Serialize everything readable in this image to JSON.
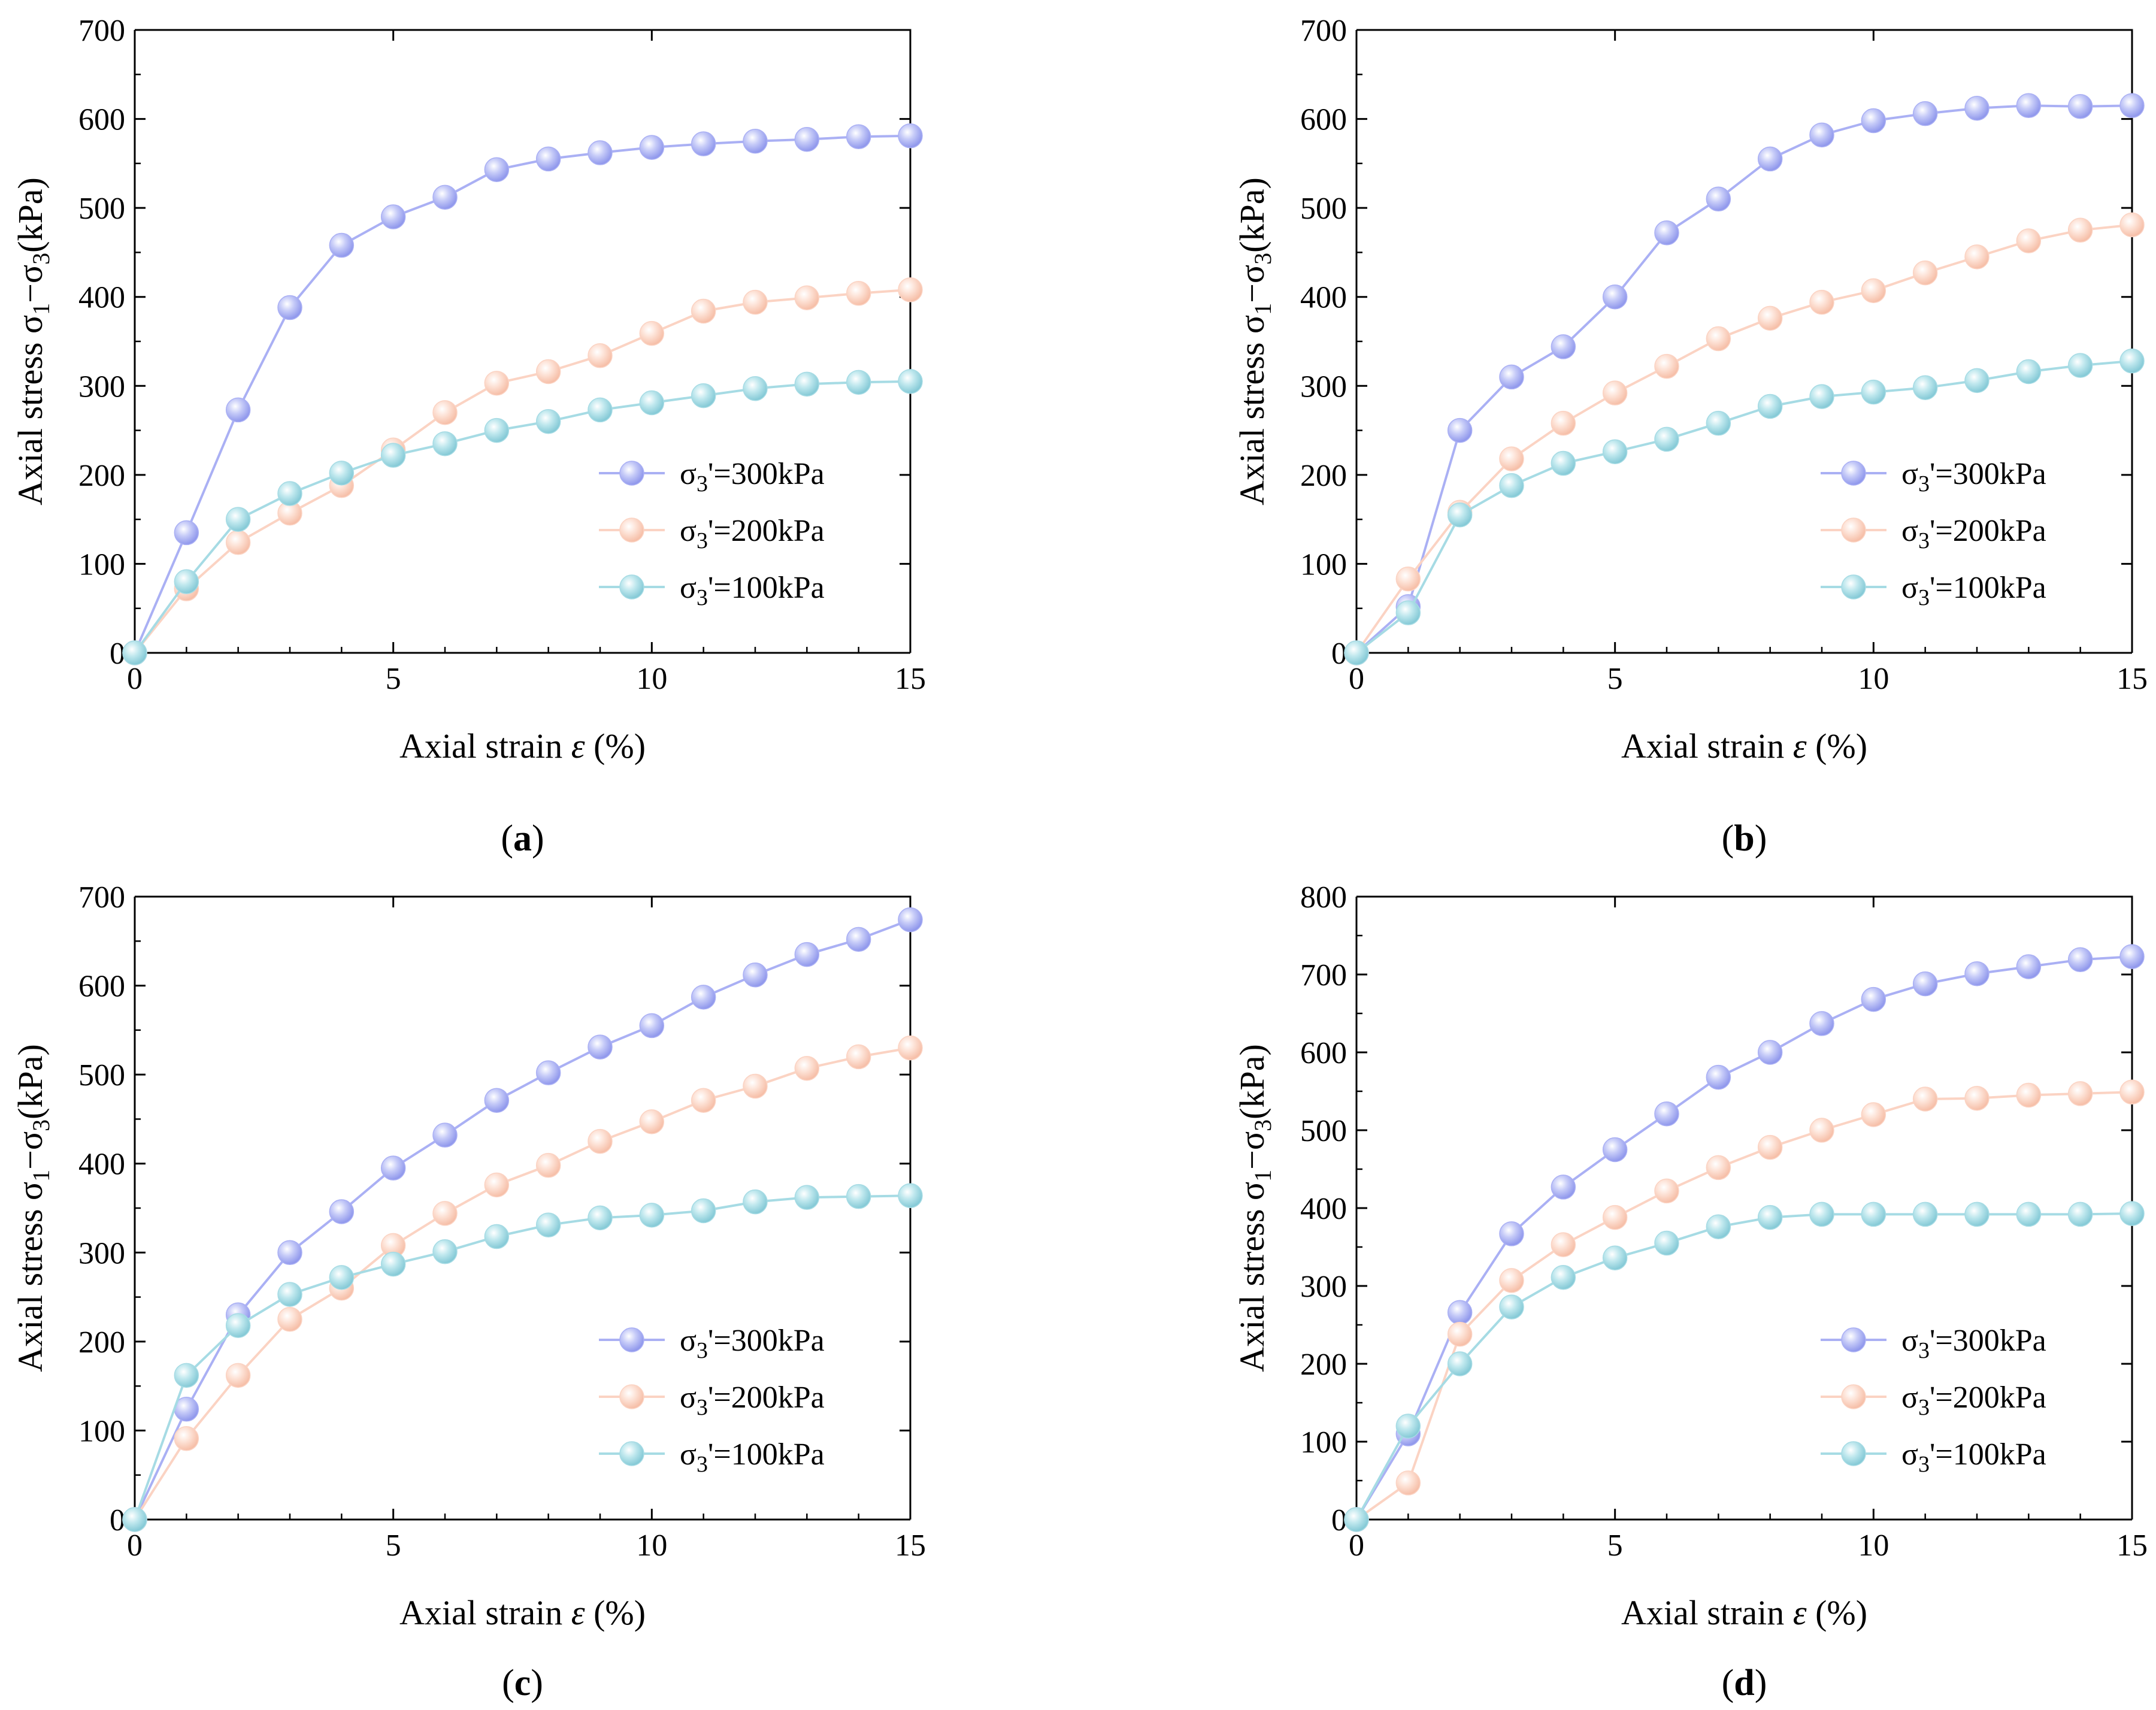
{
  "colors": {
    "s300": "#aab0f4",
    "s200": "#fbd3c3",
    "s100": "#a6dbe4",
    "axis": "#000000"
  },
  "chart_data": [
    {
      "type": "line",
      "panel_label": "a",
      "xlabel": "Axial strain",
      "xlabel_symbol": "ε",
      "xlabel_unit": "(%)",
      "ylabel_prefix": "Axial stress σ",
      "ylabel_sub1": "1",
      "ylabel_minus": "−σ",
      "ylabel_sub3": "3",
      "ylabel_unit": "(kPa)",
      "xlim": [
        0,
        15
      ],
      "ylim": [
        0,
        700
      ],
      "xticks": [
        "0",
        "5",
        "10",
        "15"
      ],
      "yticks": [
        "0",
        "100",
        "200",
        "300",
        "400",
        "500",
        "600",
        "700"
      ],
      "legend_position": "lower-right",
      "series": [
        {
          "key": "s300",
          "name_prefix": "σ",
          "name_sub": "3",
          "name_suffix": "'=300kPa",
          "x": [
            0,
            1,
            2,
            3,
            4,
            5,
            6,
            7,
            8,
            9,
            10,
            11,
            12,
            13,
            14,
            15
          ],
          "y": [
            0,
            135,
            273,
            388,
            458,
            490,
            512,
            543,
            555,
            562,
            568,
            572,
            575,
            577,
            580,
            581
          ]
        },
        {
          "key": "s200",
          "name_prefix": "σ",
          "name_sub": "3",
          "name_suffix": "'=200kPa",
          "x": [
            0,
            1,
            2,
            3,
            4,
            5,
            6,
            7,
            8,
            9,
            10,
            11,
            12,
            13,
            14,
            15
          ],
          "y": [
            0,
            72,
            124,
            157,
            188,
            228,
            270,
            303,
            316,
            334,
            359,
            384,
            394,
            399,
            404,
            408
          ]
        },
        {
          "key": "s100",
          "name_prefix": "σ",
          "name_sub": "3",
          "name_suffix": "'=100kPa",
          "x": [
            0,
            1,
            2,
            3,
            4,
            5,
            6,
            7,
            8,
            9,
            10,
            11,
            12,
            13,
            14,
            15
          ],
          "y": [
            0,
            80,
            150,
            179,
            202,
            222,
            235,
            250,
            260,
            273,
            281,
            289,
            297,
            302,
            304,
            305
          ]
        }
      ]
    },
    {
      "type": "line",
      "panel_label": "b",
      "xlabel": "Axial strain",
      "xlabel_symbol": "ε",
      "xlabel_unit": "(%)",
      "ylabel_prefix": "Axial stress σ",
      "ylabel_sub1": "1",
      "ylabel_minus": "−σ",
      "ylabel_sub3": "3",
      "ylabel_unit": "(kPa)",
      "xlim": [
        0,
        15
      ],
      "ylim": [
        0,
        700
      ],
      "xticks": [
        "0",
        "5",
        "10",
        "15"
      ],
      "yticks": [
        "0",
        "100",
        "200",
        "300",
        "400",
        "500",
        "600",
        "700"
      ],
      "legend_position": "lower-right",
      "series": [
        {
          "key": "s300",
          "name_prefix": "σ",
          "name_sub": "3",
          "name_suffix": "'=300kPa",
          "x": [
            0,
            1,
            2,
            3,
            4,
            5,
            6,
            7,
            8,
            9,
            10,
            11,
            12,
            13,
            14,
            15
          ],
          "y": [
            0,
            52,
            250,
            310,
            344,
            400,
            472,
            510,
            555,
            582,
            598,
            606,
            612,
            615,
            614,
            615
          ]
        },
        {
          "key": "s200",
          "name_prefix": "σ",
          "name_sub": "3",
          "name_suffix": "'=200kPa",
          "x": [
            0,
            1,
            2,
            3,
            4,
            5,
            6,
            7,
            8,
            9,
            10,
            11,
            12,
            13,
            14,
            15
          ],
          "y": [
            0,
            83,
            158,
            218,
            258,
            292,
            322,
            353,
            376,
            394,
            407,
            427,
            445,
            463,
            475,
            481
          ]
        },
        {
          "key": "s100",
          "name_prefix": "σ",
          "name_sub": "3",
          "name_suffix": "'=100kPa",
          "x": [
            0,
            1,
            2,
            3,
            4,
            5,
            6,
            7,
            8,
            9,
            10,
            11,
            12,
            13,
            14,
            15
          ],
          "y": [
            0,
            45,
            155,
            188,
            213,
            226,
            240,
            258,
            277,
            288,
            293,
            298,
            306,
            316,
            323,
            328
          ]
        }
      ]
    },
    {
      "type": "line",
      "panel_label": "c",
      "xlabel": "Axial strain",
      "xlabel_symbol": "ε",
      "xlabel_unit": "(%)",
      "ylabel_prefix": "Axial stress σ",
      "ylabel_sub1": "1",
      "ylabel_minus": "−σ",
      "ylabel_sub3": "3",
      "ylabel_unit": "(kPa)",
      "xlim": [
        0,
        15
      ],
      "ylim": [
        0,
        700
      ],
      "xticks": [
        "0",
        "5",
        "10",
        "15"
      ],
      "yticks": [
        "0",
        "100",
        "200",
        "300",
        "400",
        "500",
        "600",
        "700"
      ],
      "legend_position": "lower-right",
      "series": [
        {
          "key": "s300",
          "name_prefix": "σ",
          "name_sub": "3",
          "name_suffix": "'=300kPa",
          "x": [
            0,
            1,
            2,
            3,
            4,
            5,
            6,
            7,
            8,
            9,
            10,
            11,
            12,
            13,
            14,
            15
          ],
          "y": [
            0,
            124,
            230,
            300,
            346,
            395,
            432,
            471,
            502,
            531,
            555,
            587,
            612,
            635,
            652,
            674
          ]
        },
        {
          "key": "s200",
          "name_prefix": "σ",
          "name_sub": "3",
          "name_suffix": "'=200kPa",
          "x": [
            0,
            1,
            2,
            3,
            4,
            5,
            6,
            7,
            8,
            9,
            10,
            11,
            12,
            13,
            14,
            15
          ],
          "y": [
            0,
            91,
            162,
            225,
            260,
            308,
            344,
            376,
            398,
            425,
            447,
            471,
            487,
            507,
            520,
            530
          ]
        },
        {
          "key": "s100",
          "name_prefix": "σ",
          "name_sub": "3",
          "name_suffix": "'=100kPa",
          "x": [
            0,
            1,
            2,
            3,
            4,
            5,
            6,
            7,
            8,
            9,
            10,
            11,
            12,
            13,
            14,
            15
          ],
          "y": [
            0,
            162,
            218,
            253,
            272,
            287,
            301,
            318,
            331,
            339,
            342,
            347,
            357,
            362,
            363,
            364
          ]
        }
      ]
    },
    {
      "type": "line",
      "panel_label": "d",
      "xlabel": "Axial strain",
      "xlabel_symbol": "ε",
      "xlabel_unit": "(%)",
      "ylabel_prefix": "Axial stress σ",
      "ylabel_sub1": "1",
      "ylabel_minus": "−σ",
      "ylabel_sub3": "3",
      "ylabel_unit": "(kPa)",
      "xlim": [
        0,
        15
      ],
      "ylim": [
        0,
        800
      ],
      "xticks": [
        "0",
        "5",
        "10",
        "15"
      ],
      "yticks": [
        "0",
        "100",
        "200",
        "300",
        "400",
        "500",
        "600",
        "700",
        "800"
      ],
      "legend_position": "lower-right",
      "series": [
        {
          "key": "s300",
          "name_prefix": "σ",
          "name_sub": "3",
          "name_suffix": "'=300kPa",
          "x": [
            0,
            1,
            2,
            3,
            4,
            5,
            6,
            7,
            8,
            9,
            10,
            11,
            12,
            13,
            14,
            15
          ],
          "y": [
            0,
            110,
            266,
            367,
            427,
            475,
            521,
            568,
            600,
            637,
            668,
            688,
            701,
            710,
            719,
            723
          ]
        },
        {
          "key": "s200",
          "name_prefix": "σ",
          "name_sub": "3",
          "name_suffix": "'=200kPa",
          "x": [
            0,
            1,
            2,
            3,
            4,
            5,
            6,
            7,
            8,
            9,
            10,
            11,
            12,
            13,
            14,
            15
          ],
          "y": [
            0,
            47,
            238,
            307,
            353,
            388,
            422,
            452,
            478,
            500,
            520,
            540,
            541,
            545,
            547,
            549
          ]
        },
        {
          "key": "s100",
          "name_prefix": "σ",
          "name_sub": "3",
          "name_suffix": "'=100kPa",
          "x": [
            0,
            1,
            2,
            3,
            4,
            5,
            6,
            7,
            8,
            9,
            10,
            11,
            12,
            13,
            14,
            15
          ],
          "y": [
            0,
            120,
            200,
            273,
            311,
            336,
            355,
            376,
            388,
            392,
            392,
            392,
            392,
            392,
            392,
            393
          ]
        }
      ]
    }
  ]
}
